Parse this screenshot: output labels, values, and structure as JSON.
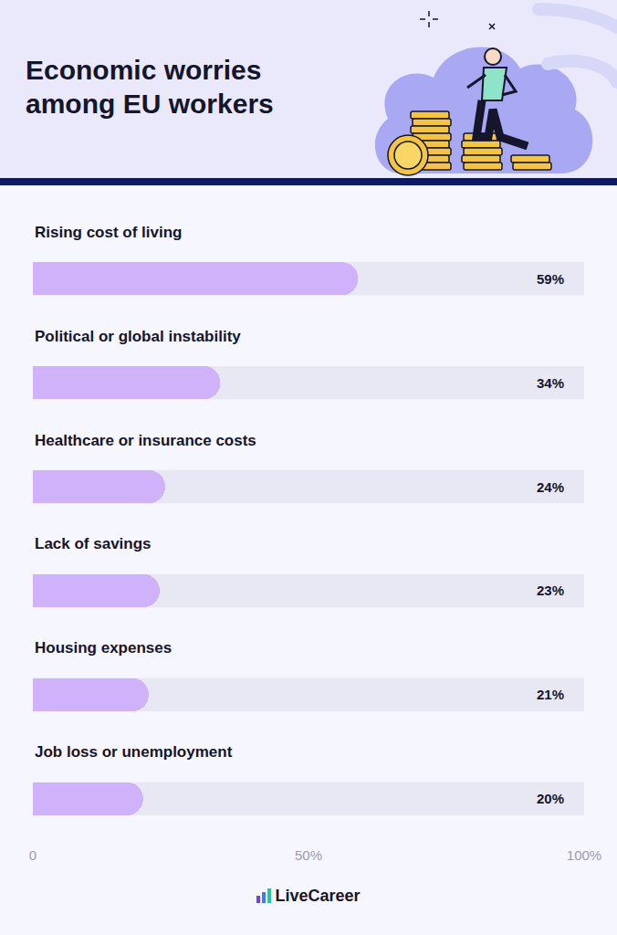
{
  "chart_data": {
    "type": "bar",
    "orientation": "horizontal",
    "title": "Economic worries among EU workers",
    "categories": [
      "Rising cost of living",
      "Political or global instability",
      "Healthcare or insurance costs",
      "Lack of savings",
      "Housing expenses",
      "Job loss or unemployment"
    ],
    "values": [
      59,
      34,
      24,
      23,
      21,
      20
    ],
    "value_labels": [
      "59%",
      "34%",
      "24%",
      "23%",
      "21%",
      "20%"
    ],
    "color": "#d0b2fb",
    "xlim": [
      0,
      100
    ],
    "xticks": [
      0,
      {
        "value": 50,
        "label": "50%"
      },
      {
        "value": 100,
        "label": "100%"
      }
    ],
    "grid": false,
    "data_labels": true,
    "tick_labels": "x"
  },
  "footer": {
    "logo": "LiveCareer"
  }
}
